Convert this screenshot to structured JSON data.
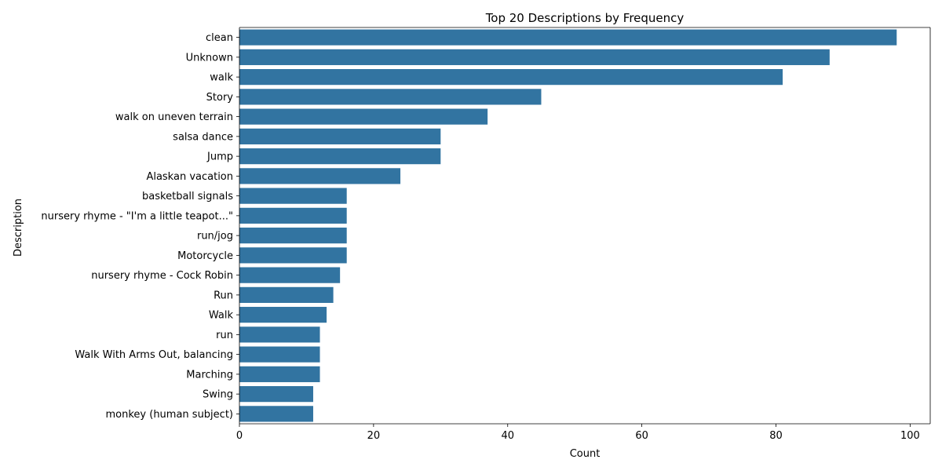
{
  "colors": {
    "bar": "#3274a1",
    "axis": "#000000",
    "background": "#ffffff"
  },
  "chart_data": {
    "type": "bar",
    "orientation": "horizontal",
    "title": "Top 20 Descriptions by Frequency",
    "xlabel": "Count",
    "ylabel": "Description",
    "xlim": [
      0,
      103
    ],
    "xticks": [
      0,
      20,
      40,
      60,
      80,
      100
    ],
    "grid": false,
    "legend": "none",
    "categories": [
      "clean",
      "Unknown",
      "walk",
      "Story",
      "walk on uneven terrain",
      "salsa dance",
      "Jump",
      "Alaskan vacation",
      "basketball signals",
      "nursery rhyme - \"I'm a little teapot...\"",
      "run/jog",
      "Motorcycle",
      "nursery rhyme - Cock Robin",
      "Run",
      "Walk",
      "run",
      "Walk With Arms Out,  balancing",
      "Marching",
      "Swing",
      "monkey (human subject)"
    ],
    "values": [
      98,
      88,
      81,
      45,
      37,
      30,
      30,
      24,
      16,
      16,
      16,
      16,
      15,
      14,
      13,
      12,
      12,
      12,
      11,
      11
    ]
  }
}
